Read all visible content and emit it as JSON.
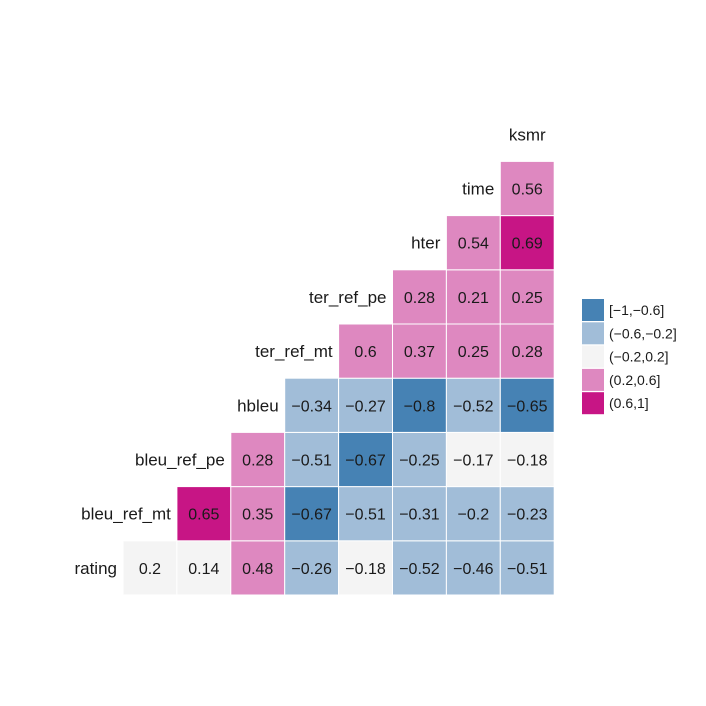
{
  "chart_data": {
    "type": "heatmap",
    "title": "",
    "variables": [
      "rating",
      "bleu_ref_mt",
      "bleu_ref_pe",
      "hbleu",
      "ter_ref_mt",
      "ter_ref_pe",
      "hter",
      "time",
      "ksmr"
    ],
    "matrix": [
      [
        0.2
      ],
      [
        0.14,
        0.65
      ],
      [
        0.48,
        0.35,
        0.28
      ],
      [
        -0.26,
        -0.67,
        -0.51,
        -0.34
      ],
      [
        -0.18,
        -0.51,
        -0.67,
        -0.27,
        0.6
      ],
      [
        -0.52,
        -0.31,
        -0.25,
        -0.8,
        0.37,
        0.28
      ],
      [
        -0.46,
        -0.2,
        -0.17,
        -0.52,
        0.25,
        0.21,
        0.54
      ],
      [
        -0.51,
        -0.23,
        -0.18,
        -0.65,
        0.28,
        0.25,
        0.69,
        0.56
      ]
    ],
    "matrix_note_columns": "matrix[c] lists correlations of column variable variables[c+1] with variables[0..c]",
    "legend": {
      "position": "right",
      "bins": [
        {
          "label": "[−1,−0.6]",
          "min": -1,
          "max": -0.6,
          "color": "#4682b4"
        },
        {
          "label": "(−0.6,−0.2]",
          "min": -0.6,
          "max": -0.2,
          "color": "#a1bdd8"
        },
        {
          "label": "(−0.2,0.2]",
          "min": -0.2,
          "max": 0.2,
          "color": "#f4f4f4"
        },
        {
          "label": "(0.2,0.6]",
          "min": 0.2,
          "max": 0.6,
          "color": "#de88c0"
        },
        {
          "label": "(0.6,1]",
          "min": 0.6,
          "max": 1,
          "color": "#c71585"
        }
      ]
    }
  }
}
